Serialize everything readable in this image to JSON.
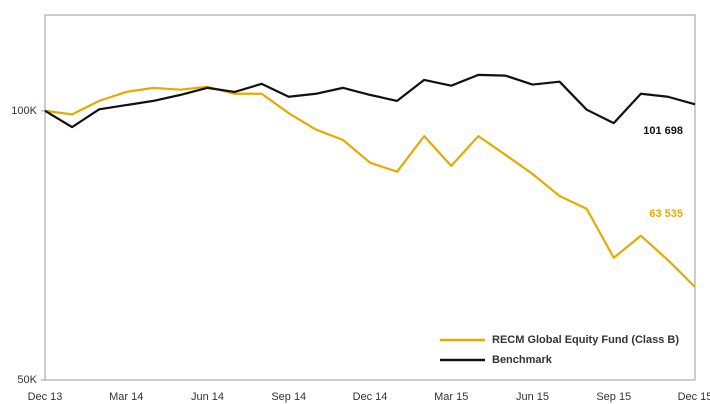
{
  "chart_data": {
    "type": "line",
    "categories": [
      "Dec 13",
      null,
      null,
      "Mar 14",
      null,
      null,
      "Jun 14",
      null,
      null,
      "Sep 14",
      null,
      null,
      "Dec 14",
      null,
      null,
      "Mar 15",
      null,
      null,
      "Jun 15",
      null,
      null,
      "Sep 15",
      null,
      null,
      "Dec 15"
    ],
    "series": [
      {
        "name": "RECM Global Equity Fund (Class B)",
        "color": "#e8a900",
        "values": [
          100000,
          99100,
          102600,
          105000,
          106100,
          105600,
          106400,
          104500,
          104500,
          99400,
          95300,
          92800,
          87500,
          85500,
          93700,
          86800,
          93700,
          89300,
          85000,
          80300,
          77700,
          68500,
          72500,
          68100,
          63535
        ],
        "value_labels": [
          null,
          null,
          null,
          null,
          null,
          null,
          null,
          null,
          null,
          null,
          null,
          null,
          null,
          null,
          null,
          null,
          null,
          null,
          null,
          null,
          null,
          null,
          null,
          null,
          "63 535"
        ]
      },
      {
        "name": "Benchmark",
        "color": "#111111",
        "values": [
          100000,
          95900,
          100400,
          101500,
          102600,
          104200,
          106100,
          105000,
          107200,
          103700,
          104500,
          106100,
          104200,
          102600,
          108300,
          106700,
          109700,
          109500,
          107000,
          107800,
          100300,
          96900,
          104500,
          103700,
          101698
        ],
        "value_labels": [
          null,
          null,
          null,
          null,
          null,
          null,
          null,
          null,
          null,
          null,
          null,
          null,
          null,
          null,
          null,
          null,
          null,
          null,
          null,
          null,
          null,
          null,
          null,
          null,
          "101 698"
        ]
      }
    ],
    "ylim": [
      50000,
      128000
    ],
    "log_scale": true,
    "yticks": [
      {
        "value": 50000,
        "label": "50K"
      },
      {
        "value": 100000,
        "label": "100K"
      }
    ],
    "grid": false,
    "legend": "lower right"
  }
}
